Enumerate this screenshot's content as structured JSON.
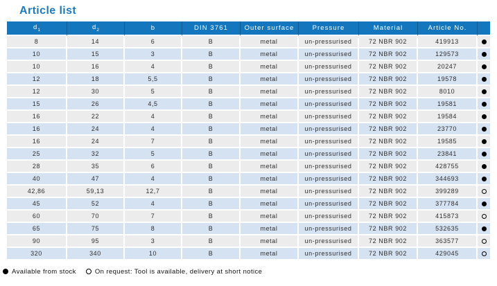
{
  "page_title": "Article list",
  "colors": {
    "header_bg": "#1477BE",
    "row_odd_bg": "#ECECEC",
    "row_even_bg": "#D5E2F1",
    "title_color": "#1C7BBE",
    "header_text": "#FFFFFF"
  },
  "table": {
    "columns": [
      {
        "label": "d",
        "sub": "1"
      },
      {
        "label": "d",
        "sub": "2"
      },
      {
        "label": "b"
      },
      {
        "label": "DIN 3761"
      },
      {
        "label": "Outer surface"
      },
      {
        "label": "Pressure"
      },
      {
        "label": "Material"
      },
      {
        "label": "Article No."
      },
      {
        "label": ""
      }
    ],
    "rows": [
      {
        "d1": "8",
        "d2": "14",
        "b": "6",
        "din": "B",
        "outer_surface": "metal",
        "pressure": "un-pressurised",
        "material": "72 NBR 902",
        "article_no": "419913",
        "availability": "stock"
      },
      {
        "d1": "10",
        "d2": "15",
        "b": "3",
        "din": "B",
        "outer_surface": "metal",
        "pressure": "un-pressurised",
        "material": "72 NBR 902",
        "article_no": "129573",
        "availability": "stock"
      },
      {
        "d1": "10",
        "d2": "16",
        "b": "4",
        "din": "B",
        "outer_surface": "metal",
        "pressure": "un-pressurised",
        "material": "72 NBR 902",
        "article_no": "20247",
        "availability": "stock"
      },
      {
        "d1": "12",
        "d2": "18",
        "b": "5,5",
        "din": "B",
        "outer_surface": "metal",
        "pressure": "un-pressurised",
        "material": "72 NBR 902",
        "article_no": "19578",
        "availability": "stock"
      },
      {
        "d1": "12",
        "d2": "30",
        "b": "5",
        "din": "B",
        "outer_surface": "metal",
        "pressure": "un-pressurised",
        "material": "72 NBR 902",
        "article_no": "8010",
        "availability": "stock"
      },
      {
        "d1": "15",
        "d2": "26",
        "b": "4,5",
        "din": "B",
        "outer_surface": "metal",
        "pressure": "un-pressurised",
        "material": "72 NBR 902",
        "article_no": "19581",
        "availability": "stock"
      },
      {
        "d1": "16",
        "d2": "22",
        "b": "4",
        "din": "B",
        "outer_surface": "metal",
        "pressure": "un-pressurised",
        "material": "72 NBR 902",
        "article_no": "19584",
        "availability": "stock"
      },
      {
        "d1": "16",
        "d2": "24",
        "b": "4",
        "din": "B",
        "outer_surface": "metal",
        "pressure": "un-pressurised",
        "material": "72 NBR 902",
        "article_no": "23770",
        "availability": "stock"
      },
      {
        "d1": "16",
        "d2": "24",
        "b": "7",
        "din": "B",
        "outer_surface": "metal",
        "pressure": "un-pressurised",
        "material": "72 NBR 902",
        "article_no": "19585",
        "availability": "stock"
      },
      {
        "d1": "25",
        "d2": "32",
        "b": "5",
        "din": "B",
        "outer_surface": "metal",
        "pressure": "un-pressurised",
        "material": "72 NBR 902",
        "article_no": "23841",
        "availability": "stock"
      },
      {
        "d1": "28",
        "d2": "35",
        "b": "6",
        "din": "B",
        "outer_surface": "metal",
        "pressure": "un-pressurised",
        "material": "72 NBR 902",
        "article_no": "428755",
        "availability": "stock"
      },
      {
        "d1": "40",
        "d2": "47",
        "b": "4",
        "din": "B",
        "outer_surface": "metal",
        "pressure": "un-pressurised",
        "material": "72 NBR 902",
        "article_no": "344693",
        "availability": "stock"
      },
      {
        "d1": "42,86",
        "d2": "59,13",
        "b": "12,7",
        "din": "B",
        "outer_surface": "metal",
        "pressure": "un-pressurised",
        "material": "72 NBR 902",
        "article_no": "399289",
        "availability": "request"
      },
      {
        "d1": "45",
        "d2": "52",
        "b": "4",
        "din": "B",
        "outer_surface": "metal",
        "pressure": "un-pressurised",
        "material": "72 NBR 902",
        "article_no": "377784",
        "availability": "stock"
      },
      {
        "d1": "60",
        "d2": "70",
        "b": "7",
        "din": "B",
        "outer_surface": "metal",
        "pressure": "un-pressurised",
        "material": "72 NBR 902",
        "article_no": "415873",
        "availability": "request"
      },
      {
        "d1": "65",
        "d2": "75",
        "b": "8",
        "din": "B",
        "outer_surface": "metal",
        "pressure": "un-pressurised",
        "material": "72 NBR 902",
        "article_no": "532635",
        "availability": "stock"
      },
      {
        "d1": "90",
        "d2": "95",
        "b": "3",
        "din": "B",
        "outer_surface": "metal",
        "pressure": "un-pressurised",
        "material": "72 NBR 902",
        "article_no": "363577",
        "availability": "request"
      },
      {
        "d1": "320",
        "d2": "340",
        "b": "10",
        "din": "B",
        "outer_surface": "metal",
        "pressure": "un-pressurised",
        "material": "72 NBR 902",
        "article_no": "429045",
        "availability": "request"
      }
    ]
  },
  "legend": {
    "stock_symbol": "●",
    "stock_label": "Available from stock",
    "request_symbol": "○",
    "request_label": "On request: Tool is available, delivery at short notice"
  }
}
